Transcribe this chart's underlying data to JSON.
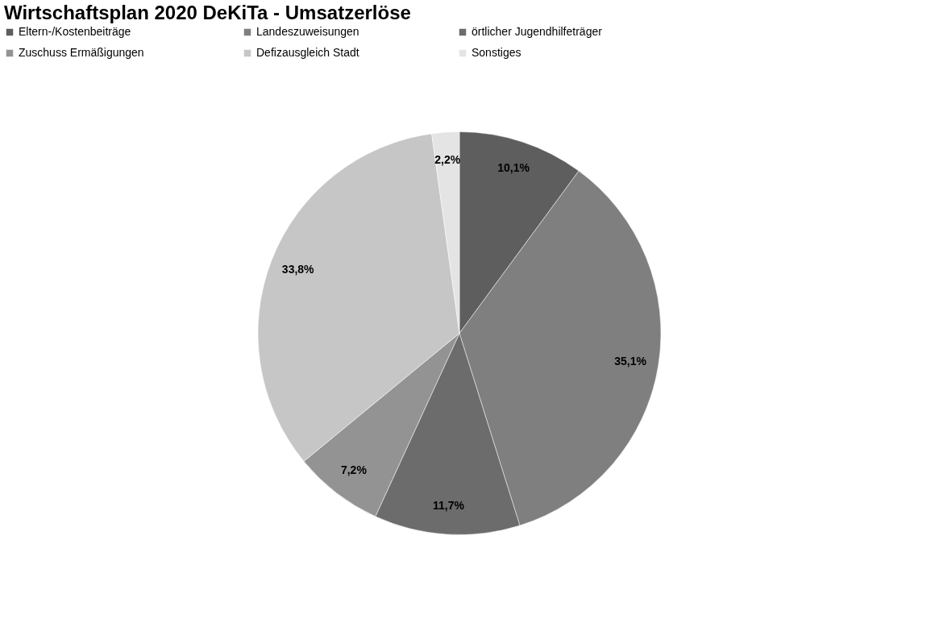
{
  "chart_data": {
    "type": "pie",
    "title": "Wirtschaftsplan 2020 DeKiTa - Umsatzerlöse",
    "categories": [
      "Eltern-/Kostenbeiträge",
      "Landeszuweisungen",
      "örtlicher Jugendhilfeträger",
      "Zuschuss Ermäßigungen",
      "Defizausgleich Stadt",
      "Sonstiges"
    ],
    "values": [
      10.1,
      35.1,
      11.7,
      7.2,
      33.8,
      2.2
    ],
    "value_labels": [
      "10,1%",
      "35,1%",
      "11,7%",
      "7,2%",
      "33,8%",
      "2,2%"
    ],
    "colors": [
      "#5e5e5e",
      "#7f7f7f",
      "#6c6c6c",
      "#939393",
      "#c6c6c6",
      "#e4e4e4"
    ],
    "legend": "top"
  }
}
